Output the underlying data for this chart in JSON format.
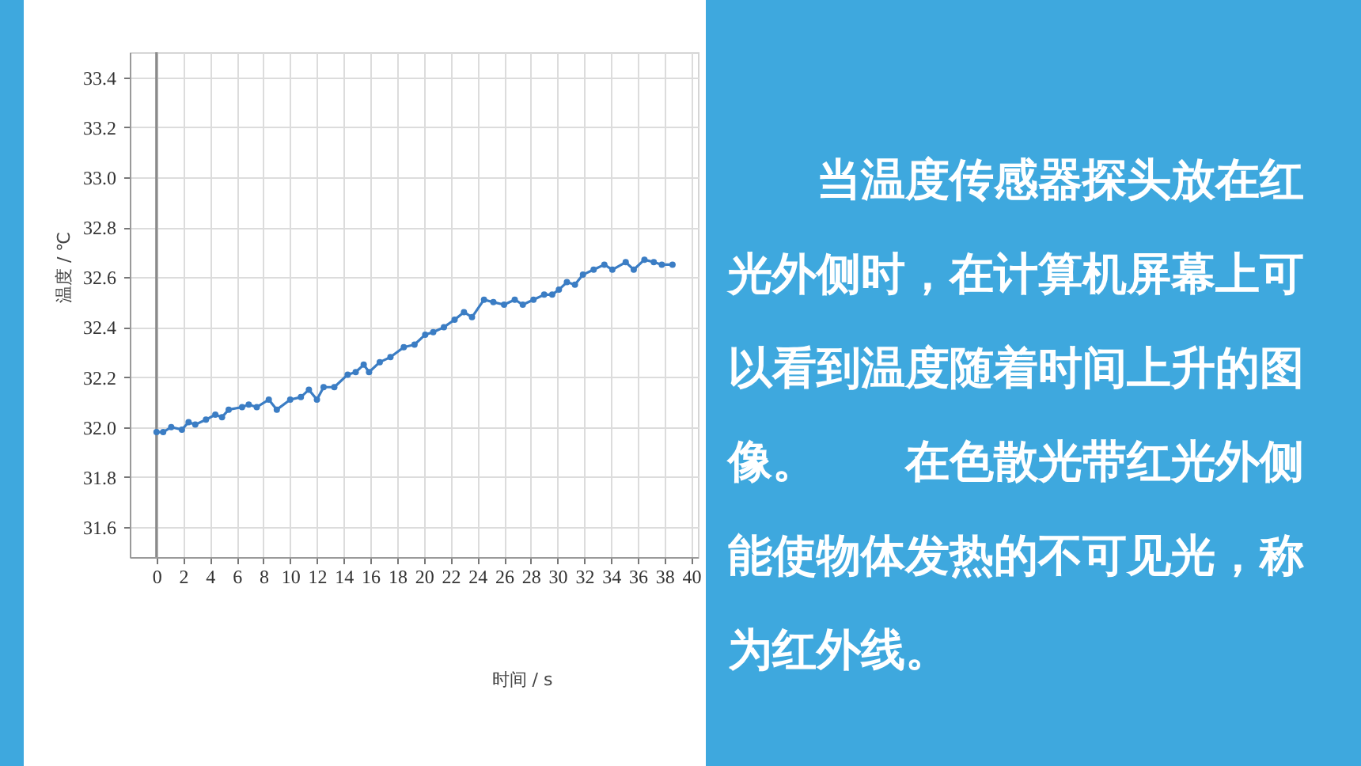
{
  "chart_data": {
    "type": "line",
    "xlabel": "时间 / s",
    "ylabel": "温度 / ℃",
    "x": [
      0.0,
      0.5,
      1.1,
      1.9,
      2.4,
      2.9,
      3.7,
      4.4,
      4.9,
      5.4,
      6.4,
      6.9,
      7.5,
      8.4,
      9.0,
      10.0,
      10.8,
      11.4,
      12.0,
      12.5,
      13.3,
      14.3,
      14.9,
      15.5,
      15.9,
      16.7,
      17.5,
      18.5,
      19.3,
      20.1,
      20.7,
      21.5,
      22.3,
      23.0,
      23.6,
      24.5,
      25.2,
      26.0,
      26.8,
      27.4,
      28.2,
      29.0,
      29.6,
      30.1,
      30.7,
      31.3,
      31.9,
      32.7,
      33.5,
      34.1,
      35.1,
      35.7,
      36.5,
      37.2,
      37.8,
      38.6
    ],
    "series": [
      {
        "color": "#3b7dc4",
        "values": [
          31.98,
          31.98,
          32.0,
          31.99,
          32.02,
          32.01,
          32.03,
          32.05,
          32.04,
          32.07,
          32.08,
          32.09,
          32.08,
          32.11,
          32.07,
          32.11,
          32.12,
          32.15,
          32.11,
          32.16,
          32.16,
          32.21,
          32.22,
          32.25,
          32.22,
          32.26,
          32.28,
          32.32,
          32.33,
          32.37,
          32.38,
          32.4,
          32.43,
          32.46,
          32.44,
          32.51,
          32.5,
          32.49,
          32.51,
          32.49,
          32.51,
          32.53,
          32.53,
          32.55,
          32.58,
          32.57,
          32.61,
          32.63,
          32.65,
          32.63,
          32.66,
          32.63,
          32.67,
          32.66,
          32.65,
          32.65
        ]
      }
    ],
    "xlim": [
      -2,
      40.5
    ],
    "xticks": [
      0,
      2,
      4,
      6,
      8,
      10,
      12,
      14,
      16,
      18,
      20,
      22,
      24,
      26,
      28,
      30,
      32,
      34,
      36,
      38,
      40
    ],
    "ylim": [
      31.48,
      33.5
    ],
    "yticks": [
      31.6,
      31.8,
      {
        "value": 32,
        "label": "32.0"
      },
      32.2,
      32.4,
      32.6,
      32.8,
      {
        "value": 33,
        "label": "33.0"
      },
      33.2,
      33.4
    ],
    "grid": true,
    "marker": "circle",
    "line_style": "solid",
    "ref_lines": [
      {
        "axis": "x",
        "value": 0,
        "color": "#8a8a8a"
      }
    ],
    "annotations": [
      "　　当温度传感器探头放在红",
      "光外侧时，在计算机屏幕上可",
      "以看到温度随着时间上升的图",
      "像。　　在色散光带红光外侧",
      "能使物体发热的不可见光，称",
      "为红外线。"
    ]
  }
}
